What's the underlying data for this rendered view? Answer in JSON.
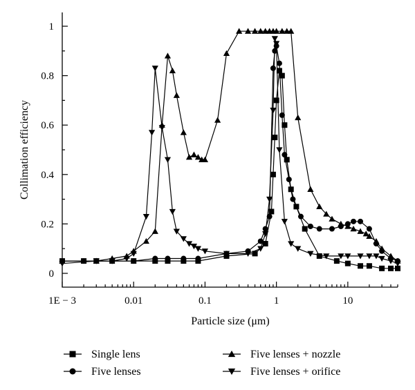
{
  "chart_data": {
    "type": "line",
    "xscale": "log",
    "xlabel": "Particle size (μm)",
    "ylabel": "Collimation efficiency",
    "xlim": [
      0.001,
      50
    ],
    "ylim": [
      0,
      1
    ],
    "xticks": [
      {
        "value": 0.001,
        "label": "1E − 3"
      },
      {
        "value": 0.01,
        "label": "0.01"
      },
      {
        "value": 0.1,
        "label": "0.1"
      },
      {
        "value": 1,
        "label": "1"
      },
      {
        "value": 10,
        "label": "10"
      }
    ],
    "yticks": [
      {
        "value": 0,
        "label": "0"
      },
      {
        "value": 0.2,
        "label": "0.2"
      },
      {
        "value": 0.4,
        "label": "0.4"
      },
      {
        "value": 0.6,
        "label": "0.6"
      },
      {
        "value": 0.8,
        "label": "0.8"
      },
      {
        "value": 1,
        "label": "1"
      }
    ],
    "legend_position": "bottom",
    "series": [
      {
        "name": "Single lens",
        "marker": "square",
        "points": [
          [
            0.001,
            0.05
          ],
          [
            0.002,
            0.05
          ],
          [
            0.003,
            0.05
          ],
          [
            0.005,
            0.05
          ],
          [
            0.01,
            0.05
          ],
          [
            0.02,
            0.05
          ],
          [
            0.03,
            0.05
          ],
          [
            0.05,
            0.05
          ],
          [
            0.08,
            0.05
          ],
          [
            0.2,
            0.07
          ],
          [
            0.5,
            0.08
          ],
          [
            0.7,
            0.12
          ],
          [
            0.85,
            0.25
          ],
          [
            0.9,
            0.4
          ],
          [
            0.95,
            0.55
          ],
          [
            1.0,
            0.7
          ],
          [
            1.1,
            0.82
          ],
          [
            1.2,
            0.8
          ],
          [
            1.3,
            0.6
          ],
          [
            1.4,
            0.46
          ],
          [
            1.6,
            0.34
          ],
          [
            1.9,
            0.27
          ],
          [
            2.5,
            0.18
          ],
          [
            4,
            0.07
          ],
          [
            7,
            0.05
          ],
          [
            10,
            0.04
          ],
          [
            15,
            0.03
          ],
          [
            20,
            0.03
          ],
          [
            30,
            0.02
          ],
          [
            40,
            0.02
          ],
          [
            50,
            0.02
          ]
        ]
      },
      {
        "name": "Five lenses",
        "marker": "circle",
        "points": [
          [
            0.001,
            0.05
          ],
          [
            0.002,
            0.05
          ],
          [
            0.003,
            0.05
          ],
          [
            0.005,
            0.05
          ],
          [
            0.01,
            0.05
          ],
          [
            0.02,
            0.06
          ],
          [
            0.03,
            0.06
          ],
          [
            0.05,
            0.06
          ],
          [
            0.08,
            0.06
          ],
          [
            0.2,
            0.08
          ],
          [
            0.4,
            0.09
          ],
          [
            0.6,
            0.13
          ],
          [
            0.7,
            0.18
          ],
          [
            0.8,
            0.23
          ],
          [
            0.9,
            0.83
          ],
          [
            0.95,
            0.9
          ],
          [
            1.0,
            0.92
          ],
          [
            1.1,
            0.85
          ],
          [
            1.2,
            0.64
          ],
          [
            1.3,
            0.48
          ],
          [
            1.5,
            0.38
          ],
          [
            1.7,
            0.3
          ],
          [
            2.2,
            0.23
          ],
          [
            3,
            0.19
          ],
          [
            4,
            0.18
          ],
          [
            6,
            0.18
          ],
          [
            8,
            0.19
          ],
          [
            10,
            0.2
          ],
          [
            12,
            0.21
          ],
          [
            15,
            0.21
          ],
          [
            20,
            0.18
          ],
          [
            25,
            0.12
          ],
          [
            30,
            0.09
          ],
          [
            40,
            0.06
          ],
          [
            50,
            0.05
          ]
        ]
      },
      {
        "name": "Five lenses + nozzle",
        "marker": "triangle-up",
        "points": [
          [
            0.001,
            0.05
          ],
          [
            0.003,
            0.05
          ],
          [
            0.005,
            0.06
          ],
          [
            0.008,
            0.07
          ],
          [
            0.01,
            0.09
          ],
          [
            0.015,
            0.13
          ],
          [
            0.02,
            0.17
          ],
          [
            0.025,
            0.6
          ],
          [
            0.03,
            0.88
          ],
          [
            0.035,
            0.82
          ],
          [
            0.04,
            0.72
          ],
          [
            0.05,
            0.57
          ],
          [
            0.06,
            0.47
          ],
          [
            0.07,
            0.48
          ],
          [
            0.08,
            0.47
          ],
          [
            0.09,
            0.46
          ],
          [
            0.1,
            0.46
          ],
          [
            0.15,
            0.62
          ],
          [
            0.2,
            0.89
          ],
          [
            0.3,
            0.98
          ],
          [
            0.4,
            0.98
          ],
          [
            0.5,
            0.98
          ],
          [
            0.6,
            0.98
          ],
          [
            0.7,
            0.98
          ],
          [
            0.8,
            0.98
          ],
          [
            0.9,
            0.98
          ],
          [
            1.0,
            0.98
          ],
          [
            1.2,
            0.98
          ],
          [
            1.4,
            0.98
          ],
          [
            1.6,
            0.98
          ],
          [
            2,
            0.63
          ],
          [
            3,
            0.34
          ],
          [
            4,
            0.27
          ],
          [
            5,
            0.24
          ],
          [
            6,
            0.22
          ],
          [
            8,
            0.2
          ],
          [
            10,
            0.19
          ],
          [
            12,
            0.18
          ],
          [
            15,
            0.17
          ],
          [
            18,
            0.16
          ],
          [
            20,
            0.15
          ],
          [
            25,
            0.13
          ],
          [
            30,
            0.1
          ],
          [
            40,
            0.07
          ],
          [
            50,
            0.05
          ]
        ]
      },
      {
        "name": "Five lenses + orifice",
        "marker": "triangle-down",
        "points": [
          [
            0.001,
            0.04
          ],
          [
            0.003,
            0.05
          ],
          [
            0.005,
            0.05
          ],
          [
            0.008,
            0.06
          ],
          [
            0.01,
            0.08
          ],
          [
            0.015,
            0.23
          ],
          [
            0.018,
            0.57
          ],
          [
            0.02,
            0.83
          ],
          [
            0.025,
            0.59
          ],
          [
            0.03,
            0.46
          ],
          [
            0.035,
            0.25
          ],
          [
            0.04,
            0.17
          ],
          [
            0.05,
            0.14
          ],
          [
            0.06,
            0.12
          ],
          [
            0.07,
            0.11
          ],
          [
            0.08,
            0.1
          ],
          [
            0.1,
            0.09
          ],
          [
            0.2,
            0.08
          ],
          [
            0.4,
            0.08
          ],
          [
            0.6,
            0.1
          ],
          [
            0.7,
            0.16
          ],
          [
            0.8,
            0.3
          ],
          [
            0.9,
            0.66
          ],
          [
            0.95,
            0.95
          ],
          [
            1.0,
            0.93
          ],
          [
            1.1,
            0.5
          ],
          [
            1.3,
            0.21
          ],
          [
            1.6,
            0.12
          ],
          [
            2,
            0.1
          ],
          [
            3,
            0.08
          ],
          [
            5,
            0.07
          ],
          [
            8,
            0.07
          ],
          [
            10,
            0.07
          ],
          [
            15,
            0.07
          ],
          [
            20,
            0.07
          ],
          [
            25,
            0.07
          ],
          [
            30,
            0.06
          ],
          [
            40,
            0.05
          ],
          [
            50,
            0.04
          ]
        ]
      }
    ]
  }
}
